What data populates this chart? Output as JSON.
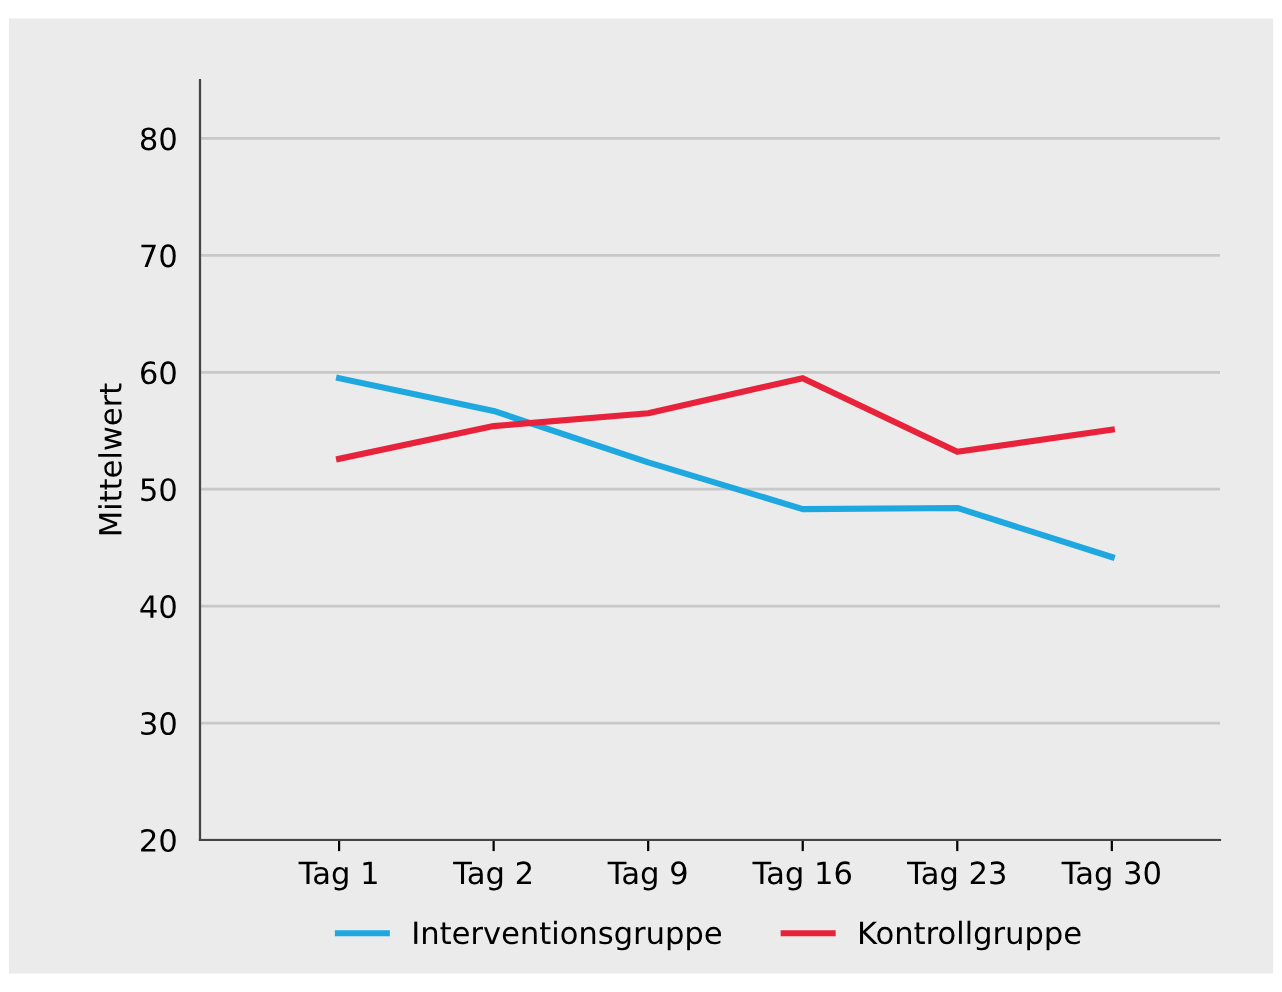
{
  "chart_data": {
    "type": "line",
    "ylabel": "Mittelwert",
    "categories": [
      "Tag 1",
      "Tag 2",
      "Tag 9",
      "Tag 16",
      "Tag 23",
      "Tag 30"
    ],
    "series": [
      {
        "name": "Interventionsgruppe",
        "color": "#1fa8e0",
        "values": [
          59.5,
          56.7,
          52.3,
          48.3,
          48.4,
          44.2
        ]
      },
      {
        "name": "Kontrollgruppe",
        "color": "#e8223a",
        "values": [
          52.6,
          55.4,
          56.5,
          59.5,
          53.2,
          55.1
        ]
      }
    ],
    "ylim": [
      20,
      85
    ],
    "yticks": [
      20,
      30,
      40,
      50,
      60,
      70,
      80
    ],
    "grid": "y",
    "legend": "bottom",
    "marker": "none",
    "line_style": "solid"
  }
}
